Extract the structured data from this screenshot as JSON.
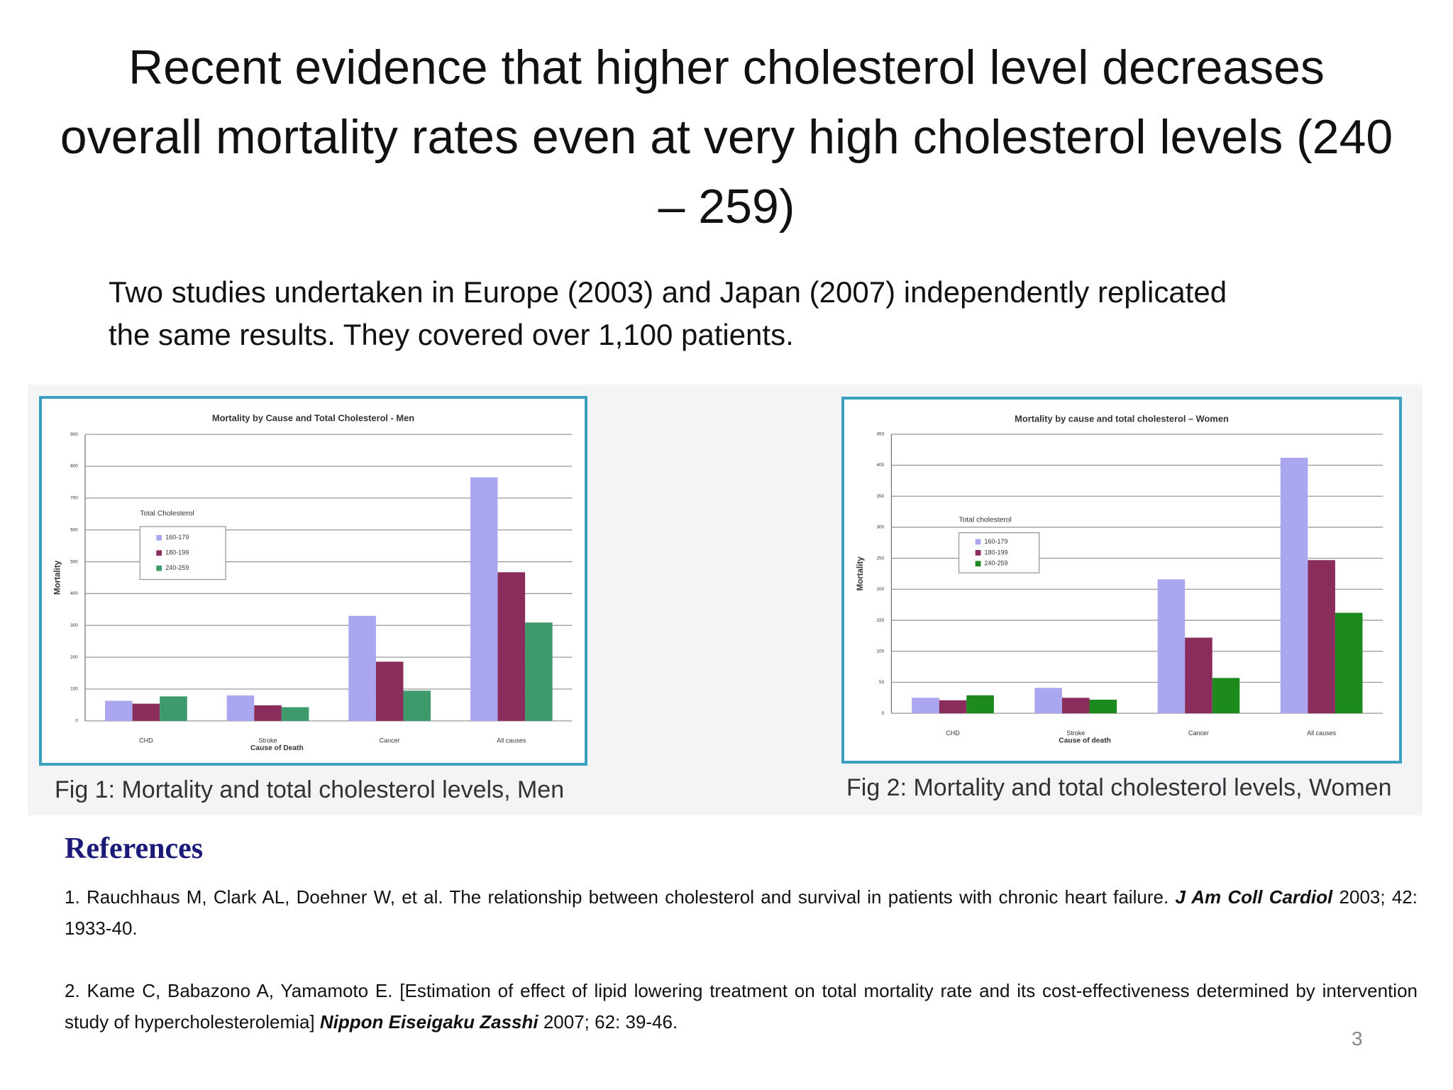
{
  "title": "Recent evidence that higher cholesterol level decreases overall mortality rates even at very high cholesterol levels (240 – 259)",
  "body": "Two studies undertaken in Europe (2003) and Japan (2007) independently replicated the same results.  They covered over 1,100 patients.",
  "chart_data": [
    {
      "type": "bar",
      "title": "Mortality by Cause and Total Cholesterol - Men",
      "caption": "Fig 1: Mortality and total cholesterol levels, Men",
      "x_label": "Cause of Death",
      "y_label": "Mortality",
      "legend_title": "Total Cholesterol",
      "categories": [
        "CHD",
        "Stroke",
        "Cancer",
        "All causes"
      ],
      "series": [
        {
          "name": "160-179",
          "color": "#aaa6f0",
          "values": [
            63,
            80,
            330,
            765
          ]
        },
        {
          "name": "180-199",
          "color": "#8b2d5c",
          "values": [
            54,
            49,
            186,
            467
          ]
        },
        {
          "name": "240-259",
          "color": "#3f9a6b",
          "values": [
            77,
            43,
            95,
            309
          ]
        }
      ],
      "ylim": [
        0,
        900
      ],
      "yticks": [
        0,
        100,
        200,
        300,
        400,
        500,
        600,
        700,
        800,
        900
      ],
      "grid": true
    },
    {
      "type": "bar",
      "title": "Mortality by cause and total cholesterol – Women",
      "caption": "Fig 2: Mortality and total cholesterol levels, Women",
      "x_label": "Cause of death",
      "y_label": "Mortality",
      "legend_title": "Total cholesterol",
      "categories": [
        "CHD",
        "Stroke",
        "Cancer",
        "All causes"
      ],
      "series": [
        {
          "name": "160-179",
          "color": "#aaa6f0",
          "values": [
            25,
            41,
            216,
            412
          ]
        },
        {
          "name": "180-199",
          "color": "#8b2d5c",
          "values": [
            21,
            25,
            122,
            247
          ]
        },
        {
          "name": "240-259",
          "color": "#1d8a1d",
          "values": [
            29,
            22,
            57,
            162
          ]
        }
      ],
      "ylim": [
        0,
        450
      ],
      "yticks": [
        0,
        50,
        100,
        150,
        200,
        250,
        300,
        350,
        400,
        450
      ],
      "grid": true
    }
  ],
  "references": {
    "heading": "References",
    "items": [
      {
        "text": "1. Rauchhaus M, Clark AL, Doehner W, et al. The relationship between cholesterol and survival in patients with chronic heart failure.",
        "journal": "J Am Coll Cardiol",
        "rest": "2003; 42: 1933-40."
      },
      {
        "text": "2. Kame C, Babazono A, Yamamoto E. [Estimation of effect of lipid lowering treatment on total mortality rate and its cost-effectiveness determined by intervention study of hypercholesterolemia]",
        "journal": "Nippon Eiseigaku Zasshi",
        "rest": "2007; 62: 39-46."
      }
    ]
  },
  "page_number": "3"
}
